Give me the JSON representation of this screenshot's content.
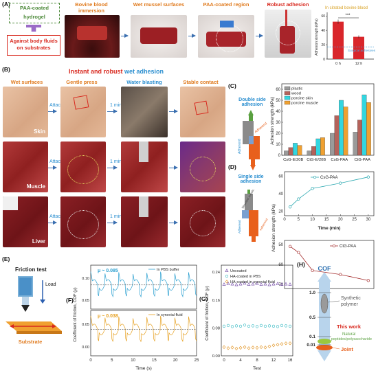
{
  "panelA": {
    "label": "(A)",
    "hydrogel_box": "PAA-coated hydrogel",
    "against_box": "Against body fluids on substrates",
    "steps": [
      "Bovine blood immersion",
      "Wet mussel surfaces",
      "PAA-coated region",
      "Robust adhesion"
    ],
    "chart_data": {
      "type": "bar",
      "title": "In citrated bovine blood",
      "categories": [
        "0 h",
        "12 h"
      ],
      "values": [
        52,
        31
      ],
      "errors": [
        3,
        2
      ],
      "ylabel": "Adhesion strength (kPa)",
      "yticks": [
        0,
        20,
        40,
        60
      ],
      "ylim": [
        0,
        65
      ],
      "reference_line": {
        "value": 17,
        "label": "Surgical adhesives"
      },
      "significance": "***",
      "colors": {
        "bar": "#d9262b",
        "ref": "#4aa0d8"
      }
    }
  },
  "panelB": {
    "label": "(B)",
    "title_black": "Instant and robust",
    "title_blue": "wet adhesion",
    "columns": [
      "Wet surfaces",
      "Gentle press",
      "Water blasting",
      "Stable contact"
    ],
    "arrow_labels": [
      "Attach",
      "1 min"
    ],
    "rows": [
      "Skin",
      "Muscle",
      "Liver"
    ]
  },
  "panelC": {
    "label": "(C)",
    "schematic_title": "Double side adhesion",
    "adherend": "Adherend",
    "chart_data": {
      "type": "bar",
      "categories": [
        "CsG-E/20B",
        "CtG-E/20B",
        "CsG-PAA",
        "CtG-PAA"
      ],
      "series": [
        {
          "name": "plastic",
          "values": [
            4,
            4,
            20,
            21
          ],
          "color": "#9a9a9a"
        },
        {
          "name": "wood",
          "values": [
            7,
            8,
            36,
            32
          ],
          "color": "#b5625a"
        },
        {
          "name": "porcine skin",
          "values": [
            11,
            15,
            50,
            55
          ],
          "color": "#33d6e0"
        },
        {
          "name": "porcine muscle",
          "values": [
            9,
            16,
            44,
            48
          ],
          "color": "#f0a030"
        }
      ],
      "ylabel": "Adhesion strength (kPa)",
      "yticks": [
        0,
        10,
        20,
        30,
        40,
        50,
        60
      ],
      "ylim": [
        0,
        65
      ],
      "legend": "top-left"
    }
  },
  "panelD": {
    "label": "(D)",
    "schematic_title": "Single side adhesion",
    "mounted": "Mounted substrate",
    "adherend": "Adherend",
    "ylabel": "Adhesion strength (kPa)",
    "chart_data": [
      {
        "type": "line",
        "name": "CsG-PAA",
        "x": [
          2,
          5,
          10,
          20,
          30
        ],
        "y": [
          25,
          34,
          46,
          52,
          59
        ],
        "xlabel": "Time (min)",
        "xticks": [
          0,
          5,
          10,
          15,
          20,
          25,
          30
        ],
        "yticks": [
          20,
          40,
          60
        ],
        "ylim": [
          15,
          65
        ],
        "color": "#2aa8b0"
      },
      {
        "type": "line",
        "name": "CtG-PAA",
        "x": [
          2,
          5,
          10,
          20,
          30
        ],
        "y": [
          51,
          54,
          63,
          65,
          68
        ],
        "yticks": [
          50,
          60,
          70
        ],
        "ylim": [
          48,
          72
        ],
        "inverted": true,
        "color": "#a32a2a"
      }
    ]
  },
  "panelE": {
    "label": "(E)",
    "title": "Friction test",
    "load": "Load",
    "substrate": "Substrate"
  },
  "panelF": {
    "label": "(F)",
    "ylabel": "Coefficient of friction, COF (μ)",
    "xlabel": "Time (s)",
    "xticks": [
      0,
      5,
      10,
      15,
      20,
      25
    ],
    "chart_data": [
      {
        "type": "line",
        "name": "In PBS buffer",
        "mu_label": "μ ~ 0.085",
        "mean": 0.085,
        "yticks": [
          0.05,
          0.1
        ],
        "color": "#2a9fd0"
      },
      {
        "type": "line",
        "name": "In synovial fluid",
        "mu_label": "μ ~ 0.038",
        "mean": 0.038,
        "yticks": [
          0.0,
          0.05
        ],
        "color": "#e6a020"
      }
    ]
  },
  "panelG": {
    "label": "(G)",
    "chart_data": {
      "type": "scatter",
      "series": [
        {
          "name": "Uncoated",
          "marker": "triangle",
          "color": "#6a3fa0",
          "values": [
            0.205,
            0.207,
            0.206,
            0.204,
            0.206,
            0.208,
            0.205,
            0.206,
            0.207,
            0.205,
            0.206,
            0.204,
            0.206,
            0.207,
            0.205,
            0.206,
            0.205
          ]
        },
        {
          "name": "HA-coated in PBS",
          "marker": "circle",
          "color": "#2fb6c0",
          "values": [
            0.085,
            0.087,
            0.084,
            0.086,
            0.085,
            0.088,
            0.085,
            0.086,
            0.084,
            0.087,
            0.085,
            0.086,
            0.085,
            0.084,
            0.087,
            0.086,
            0.085
          ]
        },
        {
          "name": "HA-coated in synovial fluid",
          "marker": "diamond",
          "color": "#e0901a",
          "values": [
            0.025,
            0.022,
            0.024,
            0.021,
            0.023,
            0.025,
            0.022,
            0.024,
            0.023,
            0.025,
            0.024,
            0.027,
            0.03,
            0.032,
            0.034,
            0.036,
            0.036
          ]
        }
      ],
      "x": [
        0,
        1,
        2,
        3,
        4,
        5,
        6,
        7,
        8,
        9,
        10,
        11,
        12,
        13,
        14,
        15,
        16
      ],
      "xlabel": "Test",
      "ylabel": "Coefficient of friction, COF (μ)",
      "xticks": [
        0,
        4,
        8,
        12,
        16
      ],
      "yticks": [
        0.0,
        0.08,
        0.16,
        0.24
      ],
      "ylim": [
        0,
        0.26
      ],
      "legend": "top-left"
    }
  },
  "panelH": {
    "label": "(H)",
    "title": "COF",
    "ticks": [
      "1.0",
      "0.5",
      "0.1",
      "0.01"
    ],
    "synthetic": "Synthetic polymer",
    "this_work": "This work",
    "natural": "Natural peptides/polysaccharide",
    "joint": "Joint"
  }
}
